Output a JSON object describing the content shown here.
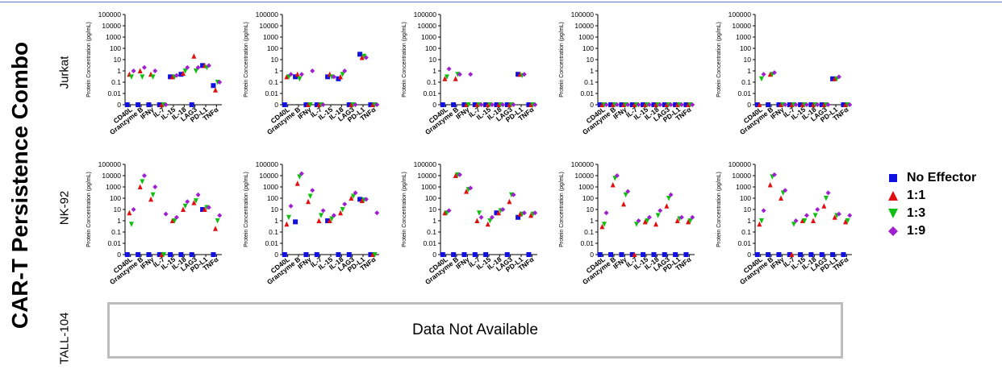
{
  "title": "CAR-T Persistence Combo",
  "row_labels": [
    "Jurkat",
    "NK-92",
    "TALL-104"
  ],
  "not_available": "Data Not Available",
  "legend": [
    {
      "label": "No Effector",
      "color": "#1010e0",
      "shape": "square"
    },
    {
      "label": "1:1",
      "color": "#e01010",
      "shape": "triangle-up"
    },
    {
      "label": "1:3",
      "color": "#10c010",
      "shape": "triangle-down"
    },
    {
      "label": "1:9",
      "color": "#a020d0",
      "shape": "diamond"
    }
  ],
  "chart_data": {
    "type": "scatter",
    "ylabel": "Protein Concentration (pg/mL)",
    "y_scale": "log",
    "ylim": [
      0,
      100000
    ],
    "yticks": [
      "100000",
      "10000",
      "1000",
      "100",
      "10",
      "1",
      "0.1",
      "0.01",
      "0"
    ],
    "categories": [
      "CD40L",
      "Granzyme B",
      "IFNγ",
      "IL-7",
      "IL-15",
      "IL-18",
      "LAG3",
      "PD-L1",
      "TNFα"
    ],
    "series_names": [
      "No Effector",
      "1:1",
      "1:3",
      "1:9"
    ],
    "panels": [
      {
        "row": "Jurkat",
        "col": 1,
        "values": {
          "No Effector": [
            0,
            0,
            0,
            0,
            0.3,
            0.5,
            0,
            3,
            0.05
          ],
          "1:1": [
            0.5,
            1,
            0.5,
            0,
            0.3,
            0.6,
            20,
            3,
            0.02
          ],
          "1:3": [
            0.3,
            0.3,
            0.3,
            0,
            0.3,
            1,
            1,
            2,
            0.1
          ],
          "1:9": [
            1,
            2,
            1,
            0,
            0.4,
            2,
            2,
            3,
            0.1
          ]
        }
      },
      {
        "row": "Jurkat",
        "col": 2,
        "values": {
          "No Effector": [
            0,
            0.3,
            0,
            0,
            0.3,
            0.2,
            0,
            30,
            0
          ],
          "1:1": [
            0.3,
            0.5,
            0,
            0,
            0.5,
            0.3,
            0,
            15,
            0
          ],
          "1:3": [
            0.3,
            0.2,
            0,
            0,
            0.3,
            0.5,
            0,
            20,
            0
          ],
          "1:9": [
            0.5,
            0.5,
            1,
            0,
            0.3,
            1,
            0,
            15,
            0
          ]
        }
      },
      {
        "row": "Jurkat",
        "col": 3,
        "values": {
          "No Effector": [
            0,
            0,
            0,
            0,
            0,
            0,
            0,
            0.5,
            0
          ],
          "1:1": [
            0.2,
            0.2,
            0,
            0,
            0,
            0,
            0,
            0.5,
            0
          ],
          "1:3": [
            0.3,
            0.5,
            0,
            0,
            0,
            0,
            0,
            0.4,
            0
          ],
          "1:9": [
            1.5,
            0.5,
            0.5,
            0,
            0,
            0,
            0,
            0.5,
            0
          ]
        }
      },
      {
        "row": "Jurkat",
        "col": 4,
        "values": {
          "No Effector": [
            0,
            0,
            0,
            0,
            0,
            0,
            0,
            0,
            0
          ],
          "1:1": [
            0,
            0,
            0,
            0,
            0,
            0,
            0,
            0,
            0
          ],
          "1:3": [
            0,
            0,
            0,
            0,
            0,
            0,
            0,
            0,
            0
          ],
          "1:9": [
            0,
            0,
            0,
            0,
            0,
            0,
            0,
            0,
            0
          ]
        }
      },
      {
        "row": "Jurkat",
        "col": 5,
        "values": {
          "No Effector": [
            0,
            0,
            0,
            0,
            0,
            0,
            0,
            0.2,
            0
          ],
          "1:1": [
            0,
            0.5,
            0,
            0,
            0,
            0,
            0,
            0.2,
            0
          ],
          "1:3": [
            0.2,
            0.5,
            0,
            0,
            0,
            0,
            0,
            0.2,
            0
          ],
          "1:9": [
            0.5,
            0.7,
            0,
            0,
            0,
            0,
            0,
            0.3,
            0
          ]
        }
      },
      {
        "row": "NK-92",
        "col": 1,
        "values": {
          "No Effector": [
            0,
            0,
            0,
            0,
            0,
            0,
            0,
            10,
            0
          ],
          "1:1": [
            5,
            1000,
            80,
            0,
            1,
            10,
            40,
            10,
            0.2
          ],
          "1:3": [
            0.5,
            3000,
            200,
            0,
            1,
            20,
            60,
            15,
            1
          ],
          "1:9": [
            10,
            10000,
            1000,
            4,
            2,
            50,
            200,
            15,
            3
          ]
        }
      },
      {
        "row": "NK-92",
        "col": 2,
        "values": {
          "No Effector": [
            0,
            0.8,
            0,
            0,
            1,
            0,
            0,
            80,
            0
          ],
          "1:1": [
            0.5,
            2000,
            50,
            1,
            1,
            5,
            100,
            60,
            0
          ],
          "1:3": [
            2,
            8000,
            150,
            3,
            1.5,
            10,
            150,
            70,
            0
          ],
          "1:9": [
            20,
            15000,
            500,
            8,
            3,
            30,
            300,
            80,
            5
          ]
        }
      },
      {
        "row": "NK-92",
        "col": 3,
        "values": {
          "No Effector": [
            0,
            0,
            0,
            0,
            0,
            5,
            0,
            2,
            0
          ],
          "1:1": [
            5,
            10000,
            400,
            1,
            0.5,
            5,
            50,
            4,
            3
          ],
          "1:3": [
            5,
            12000,
            600,
            5,
            1,
            8,
            200,
            4,
            4
          ],
          "1:9": [
            8,
            12000,
            800,
            2,
            2,
            10,
            200,
            5,
            5
          ]
        }
      },
      {
        "row": "NK-92",
        "col": 4,
        "values": {
          "No Effector": [
            0,
            0,
            0,
            0,
            0,
            0,
            0,
            0,
            0
          ],
          "1:1": [
            0.3,
            1500,
            30,
            0,
            0.8,
            0.5,
            20,
            1,
            0.8
          ],
          "1:3": [
            0.5,
            6000,
            200,
            0.5,
            1,
            3,
            100,
            1.5,
            1
          ],
          "1:9": [
            5,
            10000,
            400,
            1,
            2,
            8,
            200,
            2,
            2
          ]
        }
      },
      {
        "row": "NK-92",
        "col": 5,
        "values": {
          "No Effector": [
            0,
            0,
            0,
            0,
            0,
            0,
            0,
            0,
            0
          ],
          "1:1": [
            0.5,
            1500,
            100,
            0,
            1,
            1,
            20,
            2,
            0.8
          ],
          "1:3": [
            1,
            8000,
            300,
            0.5,
            1,
            3,
            100,
            3,
            1
          ],
          "1:9": [
            8,
            12000,
            500,
            1,
            3,
            10,
            300,
            4,
            3
          ]
        }
      }
    ]
  }
}
